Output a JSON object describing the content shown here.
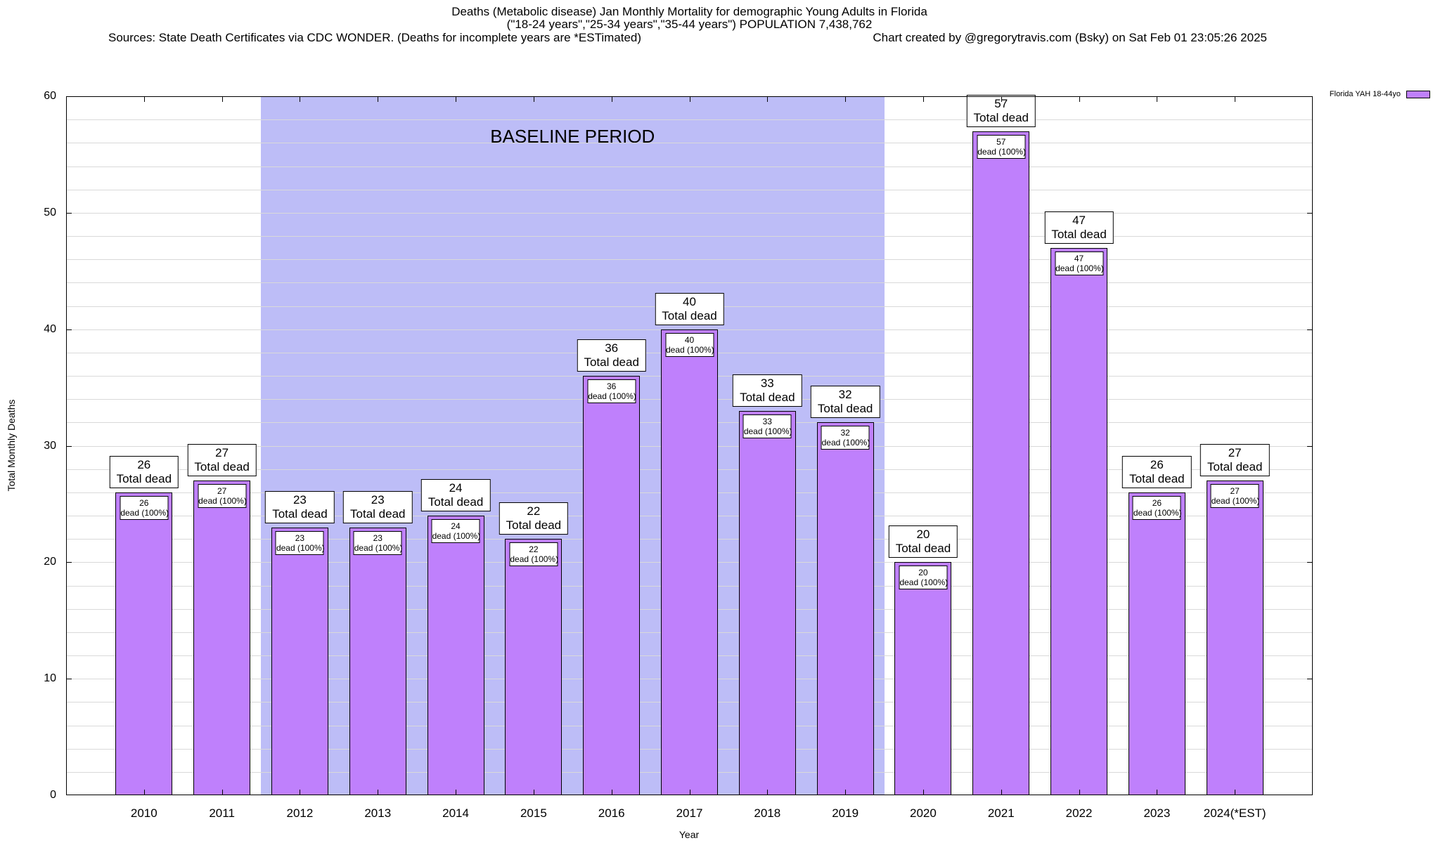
{
  "header": {
    "title_line1": "Deaths (Metabolic disease) Jan Monthly Mortality for demographic Young Adults in Florida",
    "title_line2": "(\"18-24 years\",\"25-34 years\",\"35-44 years\") POPULATION 7,438,762",
    "sources": "Sources: State Death Certificates via CDC WONDER. (Deaths for incomplete years are *ESTimated)",
    "credit": "Chart created by @gregorytravis.com (Bsky) on Sat Feb 01 23:05:26 2025"
  },
  "legend": {
    "label": "Florida YAH 18-44yo",
    "position": "top-right"
  },
  "chart_data": {
    "type": "bar",
    "title": "Deaths (Metabolic disease) Jan Monthly Mortality for demographic Young Adults in Florida",
    "categories": [
      "2010",
      "2011",
      "2012",
      "2013",
      "2014",
      "2015",
      "2016",
      "2017",
      "2018",
      "2019",
      "2020",
      "2021",
      "2022",
      "2023",
      "2024(*EST)"
    ],
    "values": [
      26,
      27,
      23,
      23,
      24,
      22,
      36,
      40,
      33,
      32,
      20,
      57,
      47,
      26,
      27
    ],
    "series_name": "Florida YAH 18-44yo",
    "bar_outer_label_suffix": "Total dead",
    "bar_inner_label_suffix": "dead (100%)",
    "xlabel": "Year",
    "ylabel": "Total Monthly Deaths",
    "ylim": [
      0,
      60
    ],
    "yticks": [
      0,
      10,
      20,
      30,
      40,
      50,
      60
    ],
    "grid": true,
    "grid_step": 2,
    "bar_color": "#bf80fc",
    "grid_color": "#d9d9d9",
    "baseline_region": {
      "label": "BASELINE PERIOD",
      "from_category": "2012",
      "to_category": "2019",
      "color": "#bdbdf7"
    },
    "legend_position": "top-right"
  }
}
